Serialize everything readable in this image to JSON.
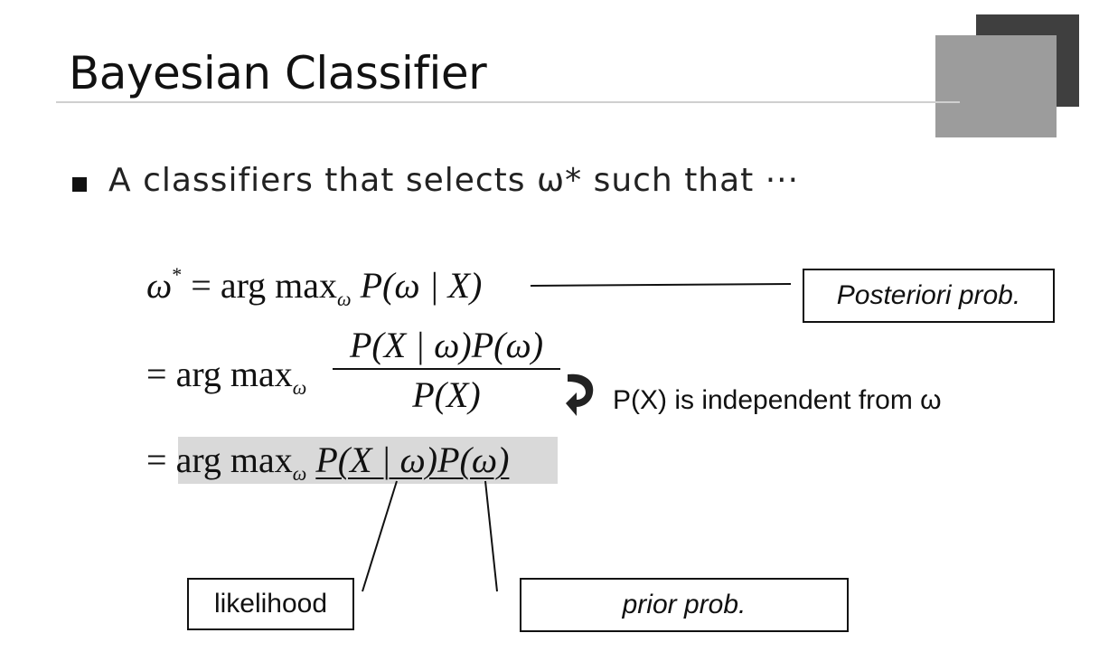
{
  "slide": {
    "title": "Bayesian Classifier",
    "bullet": "A classifiers that selects ω* such that ···"
  },
  "equation": {
    "line1": {
      "lhs_symbol": "ω",
      "lhs_star": "*",
      "eq": "=",
      "op": "arg max",
      "sub": "ω",
      "rhs": "P(ω | X)"
    },
    "line2": {
      "eq": "=",
      "op": "arg max",
      "sub": "ω",
      "numerator": "P(X | ω)P(ω)",
      "denominator": "P(X)"
    },
    "line3": {
      "eq": "=",
      "op": "arg max",
      "sub": "ω",
      "term1": "P(X | ω)",
      "term2": "P(ω)"
    }
  },
  "annotations": {
    "posteriori": "Posteriori prob.",
    "independence_note": "P(X) is independent from ω",
    "likelihood": "likelihood",
    "prior": "prior prob."
  },
  "colors": {
    "deco_dark": "#3f3f3f",
    "deco_light": "#9c9c9c",
    "highlight": "#d9d9d9"
  }
}
